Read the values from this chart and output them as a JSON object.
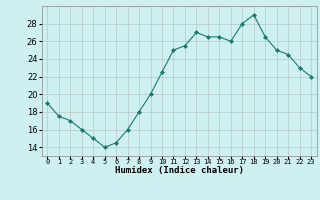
{
  "x": [
    0,
    1,
    2,
    3,
    4,
    5,
    6,
    7,
    8,
    9,
    10,
    11,
    12,
    13,
    14,
    15,
    16,
    17,
    18,
    19,
    20,
    21,
    22,
    23
  ],
  "y": [
    19,
    17.5,
    17,
    16,
    15,
    14,
    14.5,
    16,
    18,
    20,
    22.5,
    25,
    25.5,
    27,
    26.5,
    26.5,
    26,
    28,
    29,
    26.5,
    25,
    24.5,
    23,
    22
  ],
  "line_color": "#1a7a6e",
  "marker": "D",
  "marker_size": 2.0,
  "bg_color": "#cff0f0",
  "grid_color": "#b8c8c8",
  "xlabel": "Humidex (Indice chaleur)",
  "ylim": [
    13,
    30
  ],
  "yticks": [
    14,
    16,
    18,
    20,
    22,
    24,
    26,
    28
  ],
  "xlim": [
    -0.5,
    23.5
  ],
  "xtick_labels": [
    "0",
    "1",
    "2",
    "3",
    "4",
    "5",
    "6",
    "7",
    "8",
    "9",
    "10",
    "11",
    "12",
    "13",
    "14",
    "15",
    "16",
    "17",
    "18",
    "19",
    "20",
    "21",
    "22",
    "23"
  ]
}
